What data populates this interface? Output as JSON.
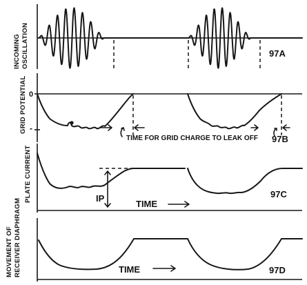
{
  "panels": [
    {
      "id": "97a",
      "label": "97A",
      "ylabel": [
        "INCOMING",
        "OSCILLATION"
      ]
    },
    {
      "id": "97b",
      "label": "97B",
      "ylabel": [
        "GRID POTENTIAL"
      ],
      "tick_zero": "0",
      "tick_minus": "-",
      "annotation": "TIME FOR GRID CHARGE TO LEAK OFF"
    },
    {
      "id": "97c",
      "label": "97C",
      "ylabel": [
        "PLATE CURRENT"
      ],
      "ip_label": "IP",
      "time_label": "TIME"
    },
    {
      "id": "97d",
      "label": "97D",
      "ylabel": [
        "MOVEMENT OF",
        "RECEIVER DIAPHRAGM"
      ],
      "time_label": "TIME"
    }
  ]
}
